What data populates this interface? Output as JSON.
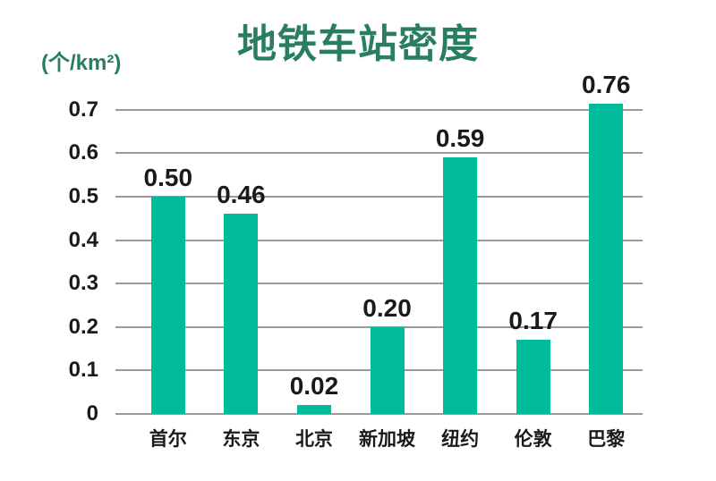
{
  "chart_data": {
    "type": "bar",
    "title": "地铁车站密度",
    "unit_label": "(个/km²)",
    "categories": [
      "首尔",
      "东京",
      "北京",
      "新加坡",
      "纽约",
      "伦敦",
      "巴黎"
    ],
    "values": [
      0.5,
      0.46,
      0.02,
      0.2,
      0.59,
      0.17,
      0.76
    ],
    "value_labels": [
      "0.50",
      "0.46",
      "0.02",
      "0.20",
      "0.59",
      "0.17",
      "0.76"
    ],
    "xlabel": "",
    "ylabel": "(个/km²)",
    "yticks": [
      0,
      0.1,
      0.2,
      0.3,
      0.4,
      0.5,
      0.6,
      0.7
    ],
    "ytick_labels": [
      "0",
      "0.1",
      "0.2",
      "0.3",
      "0.4",
      "0.5",
      "0.6",
      "0.7"
    ],
    "ylim": [
      0,
      0.715
    ],
    "grid": true,
    "legend": false,
    "colors": {
      "bar": "#00bc9a",
      "title": "#2a7e60",
      "unit_label": "#2a7e60",
      "gridline": "#9a9a9a",
      "text": "#1a1a1a",
      "background": "#ffffff"
    }
  }
}
